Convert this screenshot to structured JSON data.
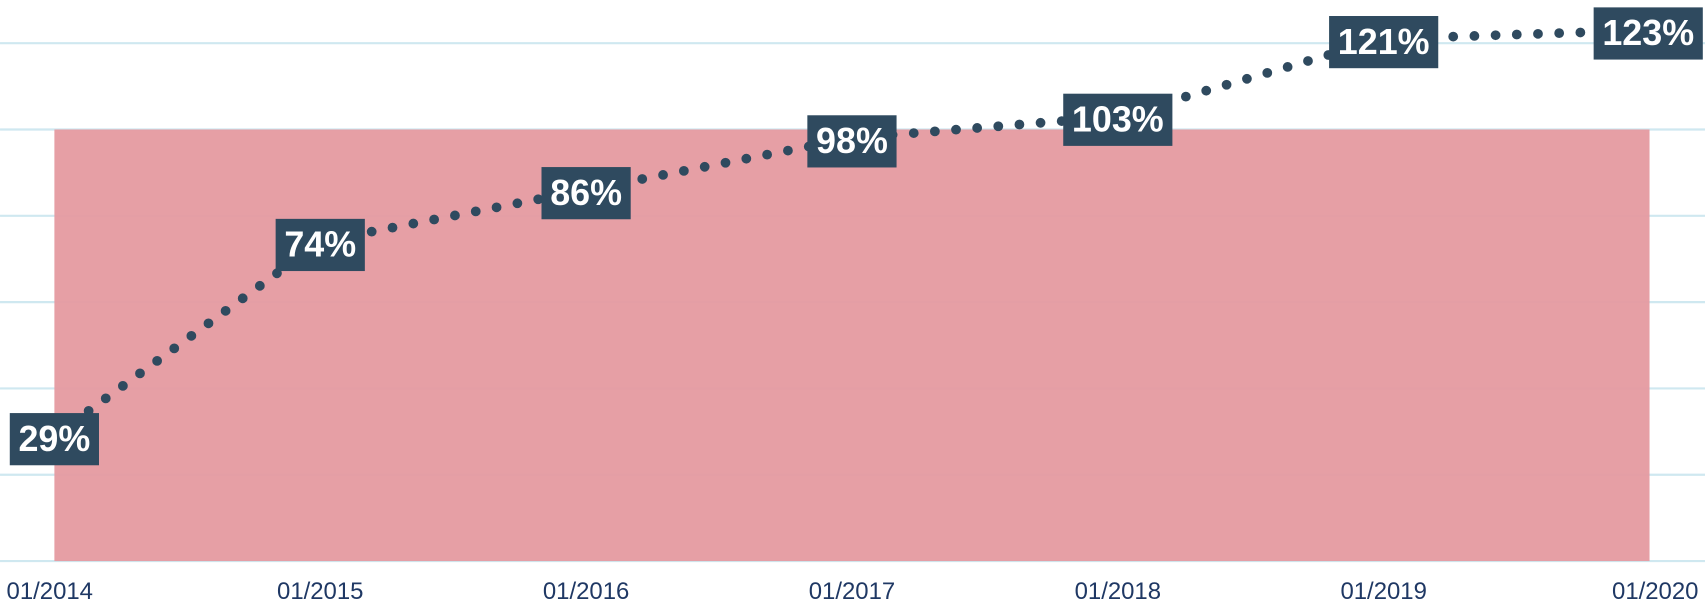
{
  "chart_data": {
    "type": "line",
    "categories": [
      "01/2014",
      "01/2015",
      "01/2016",
      "01/2017",
      "01/2018",
      "01/2019",
      "01/2020"
    ],
    "series": [
      {
        "color": "#2f4a5f",
        "values": [
          29,
          74,
          86,
          98,
          103,
          121,
          123
        ],
        "value_labels": [
          "29%",
          "74%",
          "86%",
          "98%",
          "103%",
          "121%",
          "123%"
        ]
      }
    ],
    "target_band": {
      "ylim": [
        0,
        100
      ],
      "color": "#e59aa0"
    },
    "ylim": [
      0,
      130
    ],
    "yticks": [
      0,
      20,
      40,
      60,
      80,
      100,
      120
    ],
    "grid": true
  }
}
